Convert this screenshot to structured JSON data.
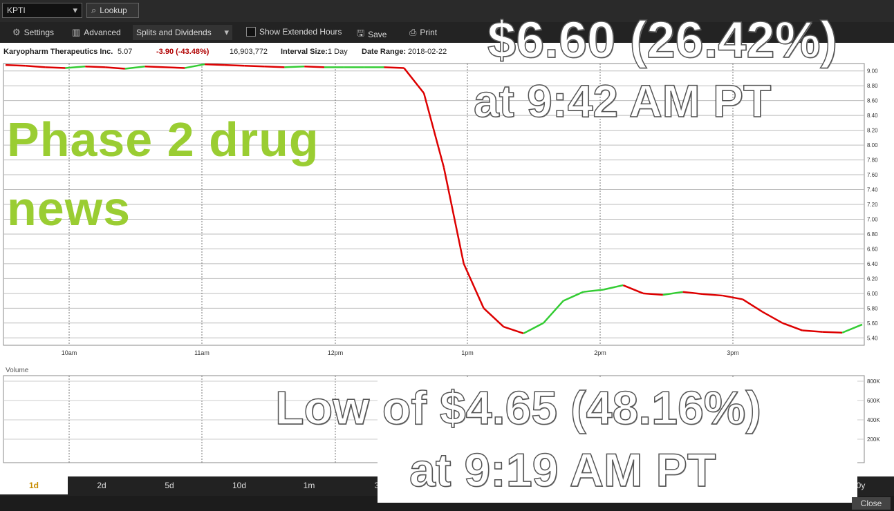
{
  "toolbar": {
    "symbol": "KPTI",
    "lookup": "Lookup",
    "settings": "Settings",
    "advanced": "Advanced",
    "splits": "Splits and Dividends",
    "extended": "Show Extended Hours",
    "save": "Save",
    "print": "Print"
  },
  "info": {
    "company": "Karyopharm Therapeutics Inc.",
    "price": "5.07",
    "change": "-3.90 (-43.48%)",
    "volume": "16,903,772",
    "interval_label": "Interval Size:",
    "interval_value": "1 Day",
    "range_label": "Date Range:",
    "range_value": "2018-02-22"
  },
  "volume_label": "Volume",
  "annotations": {
    "phase": [
      "Phase 2 drug",
      "news"
    ],
    "high_line1": "$6.60 (26.42%)",
    "high_line2": "at 9:42 AM PT",
    "low_line1": "Low of $4.65 (48.16%)",
    "low_line2": "at 9:19 AM PT"
  },
  "tabs": [
    "1d",
    "2d",
    "5d",
    "10d",
    "1m",
    "3"
  ],
  "tab_tail": "0y",
  "close": "Close",
  "chart_data": {
    "type": "line",
    "title": "",
    "x": [
      "9:30",
      "9:40",
      "9:50",
      "10:00",
      "10:10",
      "10:20",
      "10:30",
      "10:40",
      "10:50",
      "11:00",
      "11:10",
      "11:20",
      "11:30",
      "11:40",
      "11:50",
      "12:00",
      "12:10",
      "12:20",
      "12:30",
      "12:40",
      "12:50",
      "1:00",
      "1:05",
      "1:10",
      "1:15",
      "1:20",
      "1:25",
      "1:30",
      "1:35",
      "1:40",
      "1:50",
      "2:00",
      "2:10",
      "2:20",
      "2:30",
      "2:40",
      "2:50",
      "3:00",
      "3:10",
      "3:20",
      "3:30",
      "3:40",
      "3:50",
      "4:00"
    ],
    "series": [
      {
        "name": "Price",
        "values": [
          9.08,
          9.07,
          9.05,
          9.04,
          9.06,
          9.05,
          9.03,
          9.06,
          9.05,
          9.04,
          9.09,
          9.08,
          9.07,
          9.06,
          9.05,
          9.06,
          9.05,
          9.05,
          9.05,
          9.05,
          9.04,
          8.7,
          7.7,
          6.4,
          5.8,
          5.55,
          5.46,
          5.6,
          5.9,
          6.02,
          6.05,
          6.11,
          6.0,
          5.98,
          6.02,
          5.99,
          5.97,
          5.92,
          5.75,
          5.6,
          5.5,
          5.48,
          5.47,
          5.58
        ]
      }
    ],
    "xtick_labels": [
      "10am",
      "11am",
      "12pm",
      "1pm",
      "2pm",
      "3pm"
    ],
    "ylim": [
      5.3,
      9.1
    ],
    "yticks": [
      9.0,
      8.8,
      8.6,
      8.4,
      8.2,
      8.0,
      7.8,
      7.6,
      7.4,
      7.2,
      7.0,
      6.8,
      6.6,
      6.4,
      6.2,
      6.0,
      5.8,
      5.6,
      5.4
    ],
    "volume_ticks": [
      "800K",
      "600K",
      "400K",
      "200K"
    ],
    "grid": true,
    "up_color": "#33cc33",
    "down_color": "#dd0000"
  }
}
